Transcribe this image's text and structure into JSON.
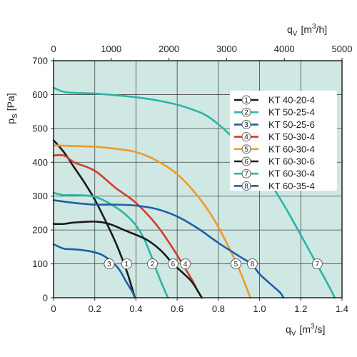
{
  "chart_data": {
    "type": "line",
    "y_axis": {
      "label_main": "p",
      "label_sub": "S",
      "label_unit": "[Pa]",
      "range": [
        0,
        700
      ],
      "ticks": [
        "0",
        "100",
        "200",
        "300",
        "400",
        "500",
        "600",
        "700"
      ]
    },
    "x_axis_bottom": {
      "label_main": "q",
      "label_sub": "V",
      "label_unit": "[m",
      "label_sup": "3",
      "label_unit_end": "/s]",
      "range": [
        0,
        1.4
      ],
      "ticks": [
        "0",
        "0.2",
        "0.4",
        "0.6",
        "0.8",
        "1.0",
        "1.2",
        "1.4"
      ]
    },
    "x_axis_top": {
      "label_main": "q",
      "label_sub": "V",
      "label_unit": "[m",
      "label_sup": "3",
      "label_unit_end": "/h]",
      "range": [
        0,
        5000
      ],
      "ticks": [
        "0",
        "1000",
        "2000",
        "3000",
        "4000",
        "5000"
      ]
    },
    "grid": true,
    "legend_position": "top-right",
    "colors": {
      "background": "#cfe8e3",
      "grid": "#444444"
    },
    "series": [
      {
        "id": "1",
        "name": "KT 40-20-4",
        "color": "#1a1a1a",
        "marker": {
          "label": "1",
          "x": 0.355,
          "y": 100
        },
        "points": [
          [
            0,
            465
          ],
          [
            0.05,
            430
          ],
          [
            0.1,
            385
          ],
          [
            0.15,
            340
          ],
          [
            0.2,
            290
          ],
          [
            0.25,
            230
          ],
          [
            0.3,
            165
          ],
          [
            0.33,
            120
          ],
          [
            0.36,
            70
          ],
          [
            0.38,
            30
          ],
          [
            0.395,
            0
          ]
        ]
      },
      {
        "id": "2",
        "name": "KT 50-25-4",
        "color": "#2ab5a5",
        "marker": {
          "label": "2",
          "x": 0.48,
          "y": 100
        },
        "points": [
          [
            0,
            310
          ],
          [
            0.05,
            303
          ],
          [
            0.1,
            303
          ],
          [
            0.2,
            298
          ],
          [
            0.3,
            268
          ],
          [
            0.38,
            228
          ],
          [
            0.43,
            185
          ],
          [
            0.47,
            130
          ],
          [
            0.5,
            80
          ],
          [
            0.53,
            35
          ],
          [
            0.555,
            0
          ]
        ]
      },
      {
        "id": "3",
        "name": "KT 50-25-6",
        "color": "#1f5fa8",
        "marker": {
          "label": "3",
          "x": 0.27,
          "y": 100
        },
        "points": [
          [
            0,
            158
          ],
          [
            0.05,
            145
          ],
          [
            0.1,
            143
          ],
          [
            0.17,
            138
          ],
          [
            0.23,
            128
          ],
          [
            0.28,
            108
          ],
          [
            0.32,
            82
          ],
          [
            0.35,
            50
          ],
          [
            0.38,
            20
          ],
          [
            0.395,
            0
          ]
        ]
      },
      {
        "id": "4",
        "name": "KT 50-30-4",
        "color": "#d63a2a",
        "marker": {
          "label": "4",
          "x": 0.64,
          "y": 100
        },
        "points": [
          [
            0,
            420
          ],
          [
            0.05,
            420
          ],
          [
            0.1,
            400
          ],
          [
            0.2,
            375
          ],
          [
            0.3,
            325
          ],
          [
            0.4,
            280
          ],
          [
            0.5,
            215
          ],
          [
            0.58,
            145
          ],
          [
            0.63,
            95
          ],
          [
            0.67,
            55
          ],
          [
            0.7,
            20
          ],
          [
            0.72,
            0
          ]
        ]
      },
      {
        "id": "5",
        "name": "KT 60-30-4",
        "color": "#f09a2a",
        "marker": {
          "label": "5",
          "x": 0.885,
          "y": 100
        },
        "points": [
          [
            0,
            450
          ],
          [
            0.1,
            448
          ],
          [
            0.2,
            446
          ],
          [
            0.3,
            440
          ],
          [
            0.4,
            430
          ],
          [
            0.5,
            405
          ],
          [
            0.6,
            365
          ],
          [
            0.7,
            300
          ],
          [
            0.78,
            230
          ],
          [
            0.85,
            150
          ],
          [
            0.9,
            85
          ],
          [
            0.93,
            40
          ],
          [
            0.955,
            0
          ]
        ]
      },
      {
        "id": "6",
        "name": "KT 60-30-6",
        "color": "#1a1a1a",
        "marker": {
          "label": "6",
          "x": 0.58,
          "y": 100
        },
        "points": [
          [
            0,
            218
          ],
          [
            0.05,
            218
          ],
          [
            0.1,
            222
          ],
          [
            0.2,
            225
          ],
          [
            0.27,
            218
          ],
          [
            0.35,
            198
          ],
          [
            0.45,
            172
          ],
          [
            0.52,
            140
          ],
          [
            0.58,
            100
          ],
          [
            0.63,
            72
          ],
          [
            0.67,
            48
          ],
          [
            0.7,
            20
          ],
          [
            0.72,
            0
          ]
        ]
      },
      {
        "id": "7",
        "name": "KT 60-30-4",
        "color": "#2ab5a5",
        "marker": {
          "label": "7",
          "x": 1.28,
          "y": 100
        },
        "points": [
          [
            0,
            620
          ],
          [
            0.05,
            608
          ],
          [
            0.1,
            605
          ],
          [
            0.2,
            603
          ],
          [
            0.3,
            598
          ],
          [
            0.4,
            592
          ],
          [
            0.5,
            583
          ],
          [
            0.6,
            570
          ],
          [
            0.7,
            550
          ],
          [
            0.75,
            535
          ],
          [
            0.8,
            512
          ],
          [
            0.85,
            485
          ],
          [
            0.9,
            455
          ],
          [
            0.95,
            420
          ],
          [
            1.0,
            385
          ],
          [
            1.05,
            340
          ],
          [
            1.1,
            292
          ],
          [
            1.15,
            240
          ],
          [
            1.2,
            185
          ],
          [
            1.25,
            130
          ],
          [
            1.3,
            75
          ],
          [
            1.34,
            30
          ],
          [
            1.365,
            0
          ]
        ]
      },
      {
        "id": "8",
        "name": "KT 60-35-4",
        "color": "#1f5fa8",
        "marker": {
          "label": "8",
          "x": 0.965,
          "y": 100
        },
        "points": [
          [
            0,
            288
          ],
          [
            0.1,
            280
          ],
          [
            0.2,
            275
          ],
          [
            0.3,
            275
          ],
          [
            0.4,
            272
          ],
          [
            0.5,
            262
          ],
          [
            0.6,
            240
          ],
          [
            0.7,
            205
          ],
          [
            0.8,
            162
          ],
          [
            0.9,
            123
          ],
          [
            0.96,
            100
          ],
          [
            1.0,
            70
          ],
          [
            1.05,
            42
          ],
          [
            1.1,
            15
          ],
          [
            1.115,
            0
          ]
        ]
      }
    ]
  }
}
